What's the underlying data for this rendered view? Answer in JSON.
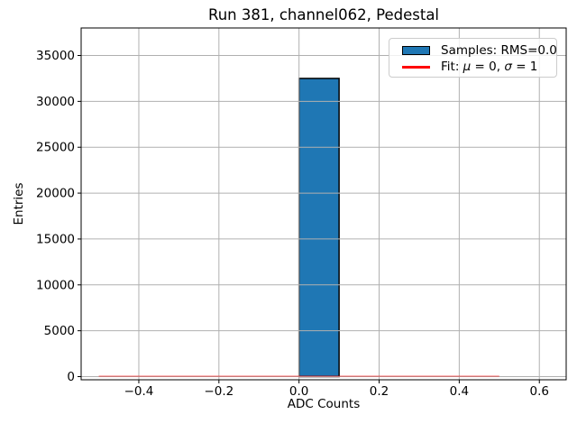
{
  "chart_data": {
    "type": "bar",
    "title": "Run 381, channel062, Pedestal",
    "xlabel": "ADC Counts",
    "ylabel": "Entries",
    "xlim": [
      -0.544,
      0.667
    ],
    "ylim": [
      -344,
      38000
    ],
    "xticks": [
      -0.4,
      -0.2,
      0.0,
      0.2,
      0.4,
      0.6
    ],
    "yticks": [
      0,
      5000,
      10000,
      15000,
      20000,
      25000,
      30000,
      35000
    ],
    "grid": true,
    "grid_color": "#b0b0b0",
    "bar_fill": "#1f77b4",
    "bar_edge": "#000000",
    "bars": [
      {
        "x_start": 0.0,
        "x_end": 0.1,
        "value": 32500
      }
    ],
    "fit_line": {
      "x_start": -0.5,
      "x_end": 0.5,
      "y": 0,
      "color": "#ff0000"
    },
    "legend": {
      "position": "upper right",
      "entries": [
        {
          "swatch": "patch",
          "color": "#1f77b4",
          "label": "Samples: RMS=0.0"
        },
        {
          "swatch": "line",
          "color": "#ff0000",
          "label_parts": {
            "prefix": "Fit: ",
            "mu": "μ",
            "mid": " = 0, ",
            "sigma": "σ",
            "suffix": " = 1"
          }
        }
      ]
    }
  }
}
